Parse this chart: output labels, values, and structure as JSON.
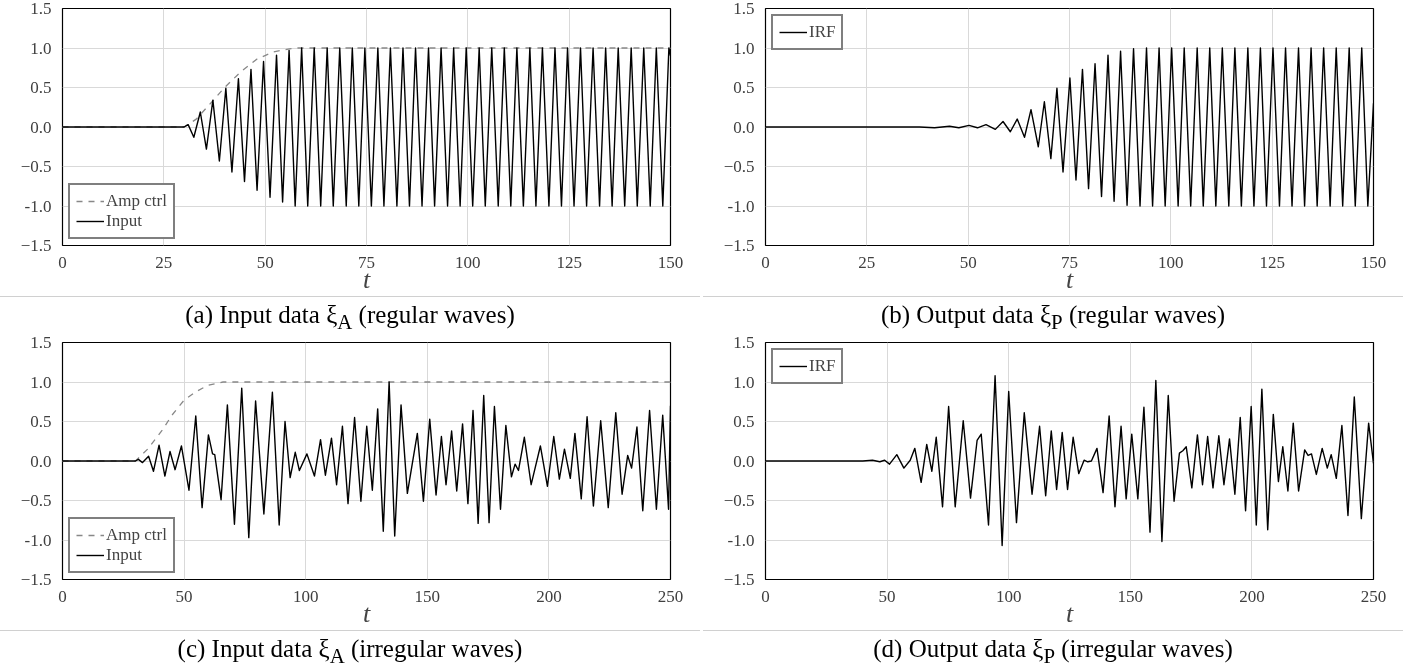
{
  "chart_data": [
    {
      "type": "line",
      "title": "(a) Input data ξ$_{A}$ (regular waves)",
      "xlabel": "t",
      "xlim": [
        0,
        150
      ],
      "xticks": [
        0,
        25,
        50,
        75,
        100,
        125,
        150
      ],
      "ylim": [
        -1.5,
        1.5
      ],
      "yticks": [
        -1.5,
        {
          "value": -1,
          "label": "-1.0"
        },
        -0.5,
        {
          "value": 0,
          "label": "0.0"
        },
        0.5,
        {
          "value": 1,
          "label": "1.0"
        },
        1.5
      ],
      "grid": true,
      "legend": "bottom left",
      "series": [
        {
          "name": "Amp ctrl",
          "color": "#888888",
          "line_style": "dashed",
          "x": [
            0,
            30,
            33,
            36,
            40,
            44,
            48,
            52,
            56,
            58,
            150
          ],
          "values": [
            0,
            0,
            0.1,
            0.27,
            0.5,
            0.7,
            0.86,
            0.95,
            0.99,
            1.0,
            1.0
          ]
        },
        {
          "name": "Input",
          "color": "#000000",
          "line_style": "solid",
          "x": [
            0,
            30,
            31,
            32.4,
            34.0,
            35.5,
            37.1,
            38.7,
            40.3,
            41.8,
            43.4,
            44.9,
            46.5,
            48.0,
            49.6,
            51.2,
            52.8,
            54.3,
            55.9,
            57.4,
            59.0,
            60.5,
            62.1,
            63.7,
            65.3,
            66.8,
            68.4,
            70.0,
            71.5,
            73.1,
            74.6,
            76.2,
            77.8,
            79.3,
            80.9,
            82.5,
            84.0,
            85.6,
            87.1,
            88.7,
            90.3,
            91.8,
            93.4,
            95.0,
            96.5,
            98.1,
            99.6,
            101.2,
            102.8,
            104.3,
            105.9,
            107.5,
            109.0,
            110.6,
            112.1,
            113.7,
            115.3,
            116.8,
            118.4,
            120.0,
            121.5,
            123.1,
            124.6,
            126.2,
            127.8,
            129.3,
            130.9,
            132.5,
            134.0,
            135.6,
            137.1,
            138.7,
            140.3,
            141.8,
            143.4,
            145.0,
            146.5,
            148.1,
            149.6,
            150
          ],
          "values": [
            0,
            0,
            0.03,
            -0.13,
            0.19,
            -0.28,
            0.34,
            -0.43,
            0.49,
            -0.57,
            0.61,
            -0.69,
            0.73,
            -0.8,
            0.83,
            -0.89,
            0.91,
            -0.95,
            0.97,
            -1.0,
            1,
            -1,
            1,
            -1,
            1,
            -1,
            1,
            -1,
            1,
            -1,
            1,
            -1,
            1,
            -1,
            1,
            -1,
            1,
            -1,
            1,
            -1,
            1,
            -1,
            1,
            -1,
            1,
            -1,
            1,
            -1,
            1,
            -1,
            1,
            -1,
            1,
            -1,
            1,
            -1,
            1,
            -1,
            1,
            -1,
            1,
            -1,
            1,
            -1,
            1,
            -1,
            1,
            -1,
            1,
            -1,
            1,
            -1,
            1,
            -1,
            1,
            -1,
            1,
            -1,
            1,
            0.9
          ]
        }
      ]
    },
    {
      "type": "line",
      "title": "(b) Output data ξ$_{P}$ (regular waves)",
      "xlabel": "t",
      "xlim": [
        0,
        150
      ],
      "xticks": [
        0,
        25,
        50,
        75,
        100,
        125,
        150
      ],
      "ylim": [
        -1.5,
        1.5
      ],
      "yticks": [
        -1.5,
        {
          "value": -1,
          "label": "-1.0"
        },
        -0.5,
        {
          "value": 0,
          "label": "0.0"
        },
        0.5,
        {
          "value": 1,
          "label": "1.0"
        },
        1.5
      ],
      "grid": true,
      "legend": "top left",
      "series": [
        {
          "name": "IRF",
          "color": "#000000",
          "line_style": "solid",
          "x": [
            0,
            38,
            41.7,
            45.4,
            47.7,
            50.2,
            52.3,
            54.4,
            56.7,
            58.6,
            60.4,
            62.1,
            63.9,
            65.5,
            67.3,
            68.8,
            70.4,
            71.9,
            73.4,
            75.1,
            76.6,
            78.2,
            79.7,
            81.3,
            82.9,
            84.5,
            86.0,
            87.6,
            89.2,
            90.8,
            92.4,
            94.0,
            95.5,
            97.1,
            98.6,
            100.2,
            101.8,
            103.3,
            104.9,
            106.5,
            108.0,
            109.6,
            111.1,
            112.7,
            114.3,
            115.8,
            117.4,
            119.0,
            120.5,
            122.1,
            123.6,
            125.2,
            126.8,
            128.3,
            129.9,
            131.5,
            133.0,
            134.6,
            136.1,
            137.7,
            139.3,
            140.8,
            142.4,
            144.0,
            145.5,
            147.1,
            148.6,
            150
          ],
          "values": [
            0,
            0,
            -0.01,
            0.01,
            -0.01,
            0.02,
            -0.01,
            0.03,
            -0.03,
            0.07,
            -0.06,
            0.1,
            -0.13,
            0.22,
            -0.25,
            0.32,
            -0.4,
            0.49,
            -0.57,
            0.62,
            -0.67,
            0.73,
            -0.78,
            0.8,
            -0.88,
            0.91,
            -0.94,
            0.96,
            -0.99,
            0.99,
            -1.0,
            1.0,
            -1,
            1,
            -1,
            1,
            -1,
            1,
            -1,
            1,
            -1,
            1,
            -1,
            1,
            -1,
            1,
            -1,
            1,
            -1,
            1,
            -1,
            1,
            -1,
            1,
            -1,
            1,
            -1,
            1,
            -1,
            1,
            -1,
            1,
            -1,
            1,
            -1,
            1,
            -1,
            0.3
          ]
        }
      ]
    },
    {
      "type": "line",
      "title": "(c) Input data ξ$_{A}$ (irregular waves)",
      "xlabel": "t",
      "xlim": [
        0,
        250
      ],
      "xticks": [
        0,
        50,
        100,
        150,
        200,
        250
      ],
      "ylim": [
        -1.5,
        1.5
      ],
      "yticks": [
        -1.5,
        {
          "value": -1,
          "label": "-1.0"
        },
        -0.5,
        {
          "value": 0,
          "label": "0.0"
        },
        0.5,
        {
          "value": 1,
          "label": "1.0"
        },
        1.5
      ],
      "grid": true,
      "legend": "bottom left",
      "series": [
        {
          "name": "Amp ctrl",
          "color": "#888888",
          "line_style": "dashed",
          "x": [
            0,
            30,
            35,
            41,
            45,
            50,
            55,
            60,
            66,
            250
          ],
          "values": [
            0,
            0,
            0.15,
            0.39,
            0.58,
            0.77,
            0.88,
            0.96,
            1.0,
            1.0
          ]
        },
        {
          "name": "Input",
          "color": "#000000",
          "line_style": "solid",
          "x": [
            0,
            30.0,
            31.2,
            32.9,
            35.4,
            37.4,
            39.7,
            42.1,
            44.2,
            46.3,
            48.9,
            52.0,
            54.8,
            57.4,
            60.0,
            61.7,
            62.6,
            65.2,
            67.8,
            70.7,
            73.7,
            76.6,
            79.4,
            82.8,
            86.3,
            89.1,
            91.5,
            93.6,
            95.7,
            97.4,
            100.5,
            103.6,
            106.1,
            108.1,
            110.6,
            112.7,
            115.1,
            117.4,
            120.1,
            122.7,
            125.1,
            127.4,
            129.6,
            131.9,
            134.3,
            136.6,
            139.2,
            141.8,
            145.9,
            148.4,
            151.0,
            153.6,
            155.8,
            157.7,
            160.0,
            162.1,
            164.5,
            166.7,
            168.8,
            170.9,
            173.2,
            175.4,
            177.6,
            180.1,
            182.3,
            184.6,
            186.1,
            187.5,
            189.9,
            192.7,
            196.5,
            199.4,
            202.0,
            204.3,
            206.4,
            208.8,
            210.7,
            213.3,
            215.7,
            218.3,
            221.3,
            224.4,
            227.5,
            230.1,
            232.4,
            234.0,
            236.2,
            238.6,
            241.4,
            244.2,
            246.8,
            249.2,
            250
          ],
          "values": [
            0,
            0,
            0.02,
            -0.02,
            0.06,
            -0.13,
            0.2,
            -0.19,
            0.12,
            -0.11,
            0.19,
            -0.37,
            0.57,
            -0.59,
            0.33,
            0.09,
            0.08,
            -0.49,
            0.71,
            -0.8,
            0.92,
            -0.97,
            0.76,
            -0.67,
            0.87,
            -0.81,
            0.5,
            -0.21,
            0.11,
            -0.12,
            0.09,
            -0.19,
            0.27,
            -0.18,
            0.29,
            -0.3,
            0.44,
            -0.54,
            0.55,
            -0.51,
            0.44,
            -0.37,
            0.66,
            -0.89,
            1.0,
            -0.95,
            0.71,
            -0.41,
            0.35,
            -0.51,
            0.53,
            -0.43,
            0.31,
            -0.3,
            0.38,
            -0.38,
            0.47,
            -0.54,
            0.64,
            -0.79,
            0.83,
            -0.78,
            0.69,
            -0.61,
            0.45,
            -0.2,
            -0.04,
            -0.12,
            0.3,
            -0.3,
            0.19,
            -0.32,
            0.31,
            -0.23,
            0.15,
            -0.22,
            0.35,
            -0.48,
            0.56,
            -0.57,
            0.51,
            -0.59,
            0.61,
            -0.42,
            0.07,
            -0.09,
            0.43,
            -0.63,
            0.64,
            -0.61,
            0.58,
            -0.61,
            0.7
          ]
        }
      ]
    },
    {
      "type": "line",
      "title": "(d) Output data ξ$_{P}$ (irregular waves)",
      "xlabel": "t",
      "xlim": [
        0,
        250
      ],
      "xticks": [
        0,
        50,
        100,
        150,
        200,
        250
      ],
      "ylim": [
        -1.5,
        1.5
      ],
      "yticks": [
        -1.5,
        {
          "value": -1,
          "label": "-1.0"
        },
        -0.5,
        {
          "value": 0,
          "label": "0.0"
        },
        0.5,
        {
          "value": 1,
          "label": "1.0"
        },
        1.5
      ],
      "grid": true,
      "legend": "top left",
      "series": [
        {
          "name": "IRF",
          "color": "#000000",
          "line_style": "solid",
          "x": [
            0,
            40,
            44,
            47,
            49,
            51.0,
            54.0,
            56.9,
            59.5,
            61.4,
            64.0,
            66.3,
            68.4,
            70.2,
            72.8,
            75.3,
            78.0,
            81.3,
            84.3,
            87.0,
            88.7,
            91.7,
            94.4,
            97.3,
            100.0,
            103.2,
            106.4,
            109.6,
            112.7,
            115.2,
            117.5,
            119.7,
            122.0,
            124.2,
            126.5,
            128.8,
            131.0,
            132.5,
            134.0,
            136.3,
            138.8,
            141.3,
            143.7,
            146.2,
            148.3,
            150.6,
            153.1,
            155.6,
            158.1,
            160.5,
            163.0,
            165.6,
            168.0,
            170.2,
            171.6,
            173.0,
            175.3,
            177.6,
            179.7,
            181.8,
            184.0,
            186.4,
            188.5,
            190.8,
            193.0,
            195.2,
            197.4,
            199.7,
            201.8,
            204.1,
            206.5,
            208.8,
            210.9,
            212.7,
            214.8,
            217.0,
            219.2,
            221.7,
            223.1,
            224.5,
            226.5,
            228.9,
            231.0,
            232.6,
            234.7,
            237.0,
            239.5,
            242.1,
            245.0,
            248.0,
            250
          ],
          "values": [
            0,
            0,
            0.01,
            -0.01,
            0.01,
            -0.04,
            0.08,
            -0.09,
            0.01,
            0.16,
            -0.27,
            0.21,
            -0.13,
            0.3,
            -0.58,
            0.69,
            -0.58,
            0.51,
            -0.47,
            0.26,
            0.34,
            -0.81,
            1.08,
            -1.07,
            0.88,
            -0.78,
            0.61,
            -0.42,
            0.44,
            -0.44,
            0.38,
            -0.36,
            0.36,
            -0.36,
            0.3,
            -0.16,
            0.01,
            -0.01,
            0.0,
            0.16,
            -0.4,
            0.57,
            -0.58,
            0.44,
            -0.48,
            0.34,
            -0.48,
            0.68,
            -0.9,
            1.02,
            -1.02,
            0.83,
            -0.51,
            0.1,
            0.13,
            0.18,
            -0.34,
            0.33,
            -0.3,
            0.31,
            -0.34,
            0.32,
            -0.3,
            0.28,
            -0.42,
            0.55,
            -0.63,
            0.69,
            -0.81,
            0.91,
            -0.87,
            0.59,
            -0.26,
            0.18,
            -0.38,
            0.48,
            -0.38,
            0.14,
            0.07,
            0.09,
            -0.17,
            0.16,
            -0.09,
            0.08,
            -0.22,
            0.45,
            -0.69,
            0.81,
            -0.73,
            0.48,
            -0.03
          ]
        }
      ]
    }
  ]
}
